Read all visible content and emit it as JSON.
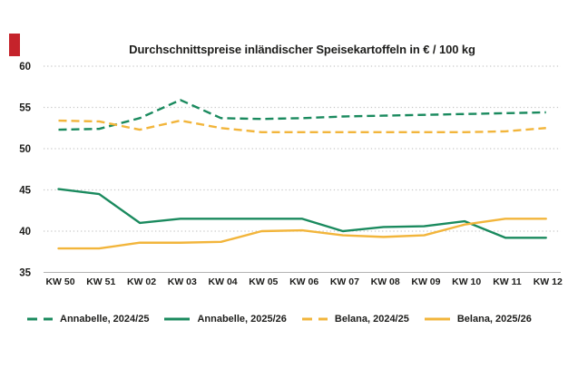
{
  "accent_bar": {
    "color": "#c5232b"
  },
  "text_color": "#1d1d1b",
  "grid_color": "#c9c9c9",
  "axis_color": "#b3b3b3",
  "chart_data": {
    "type": "line",
    "title": "Durchschnittspreise inländischer Speisekartoffeln in € / 100 kg",
    "categories": [
      "KW 50",
      "KW 51",
      "KW 02",
      "KW 03",
      "KW 04",
      "KW 05",
      "KW 06",
      "KW 07",
      "KW 08",
      "KW 09",
      "KW 10",
      "KW 11",
      "KW 12"
    ],
    "series": [
      {
        "id": "annabelle-2024-25",
        "name": "Annabelle, 2024/25",
        "color": "#1a8a5e",
        "style": "dashed",
        "values": [
          52.3,
          52.4,
          53.7,
          55.9,
          53.7,
          53.6,
          53.7,
          53.9,
          54.0,
          54.1,
          54.2,
          54.3,
          54.4
        ]
      },
      {
        "id": "annabelle-2025-26",
        "name": "Annabelle, 2025/26",
        "color": "#1a8a5e",
        "style": "solid",
        "values": [
          45.1,
          44.5,
          41.0,
          41.5,
          41.5,
          41.5,
          41.5,
          40.0,
          40.5,
          40.6,
          41.2,
          39.2,
          39.2
        ]
      },
      {
        "id": "belana-2024-25",
        "name": "Belana, 2024/25",
        "color": "#f2b53b",
        "style": "dashed",
        "values": [
          53.4,
          53.3,
          52.3,
          53.4,
          52.5,
          52.0,
          52.0,
          52.0,
          52.0,
          52.0,
          52.0,
          52.1,
          52.5
        ]
      },
      {
        "id": "belana-2025-26",
        "name": "Belana, 2025/26",
        "color": "#f2b53b",
        "style": "solid",
        "values": [
          37.9,
          37.9,
          38.6,
          38.6,
          38.7,
          40.0,
          40.1,
          39.5,
          39.3,
          39.5,
          40.8,
          41.5,
          41.5
        ]
      }
    ],
    "ylim": [
      35,
      60
    ],
    "yticks": [
      60,
      55,
      50,
      45,
      40,
      35
    ],
    "xlabel": "",
    "ylabel": "",
    "grid": "horizontal-dotted",
    "legend_position": "bottom"
  }
}
